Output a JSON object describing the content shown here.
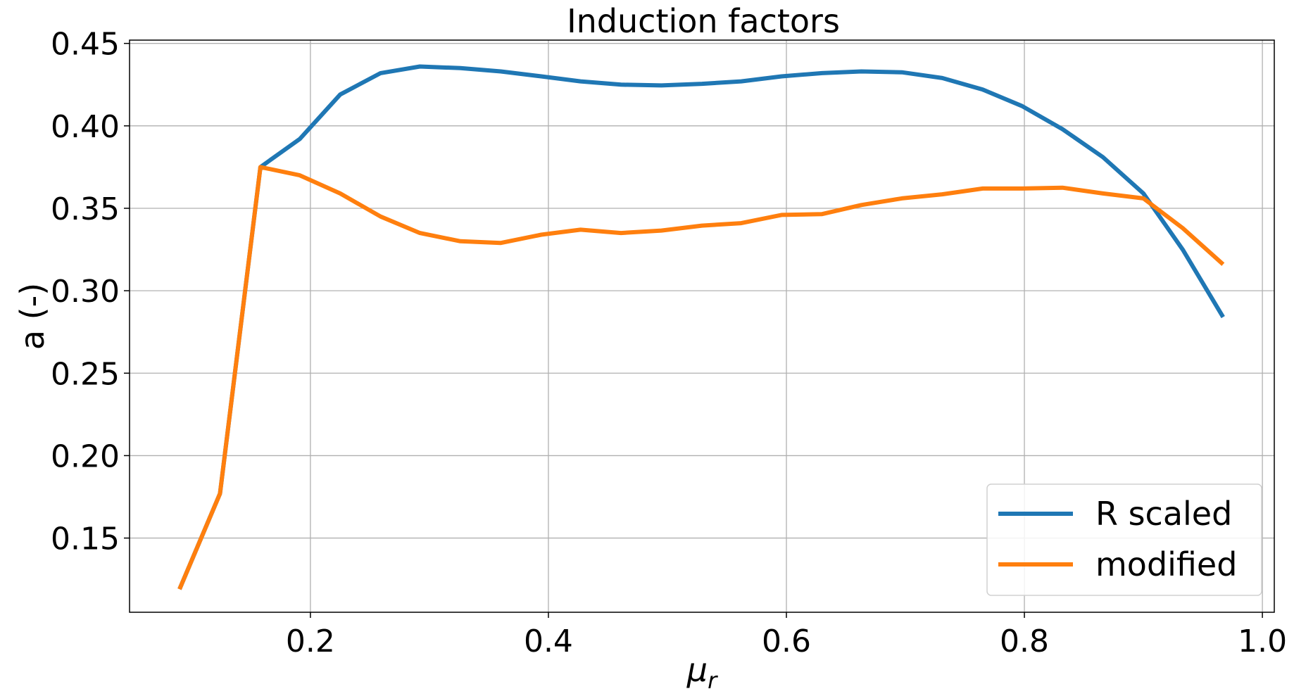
{
  "chart_data": {
    "type": "line",
    "title": "Induction factors",
    "xlabel": "μ_r",
    "ylabel": "a (-)",
    "xlim": [
      0.048,
      1.01
    ],
    "ylim": [
      0.105,
      0.452
    ],
    "xticks": [
      0.2,
      0.4,
      0.6,
      0.8,
      1.0
    ],
    "xtick_labels": [
      "0.2",
      "0.4",
      "0.6",
      "0.8",
      "1.0"
    ],
    "yticks": [
      0.15,
      0.2,
      0.25,
      0.3,
      0.35,
      0.4,
      0.45
    ],
    "ytick_labels": [
      "0.15",
      "0.20",
      "0.25",
      "0.30",
      "0.35",
      "0.40",
      "0.45"
    ],
    "grid": true,
    "legend_position": "lower right",
    "series": [
      {
        "name": "R scaled",
        "color": "#1f77b4",
        "x": [
          0.09,
          0.124,
          0.158,
          0.191,
          0.225,
          0.259,
          0.292,
          0.326,
          0.36,
          0.394,
          0.427,
          0.461,
          0.495,
          0.529,
          0.562,
          0.596,
          0.63,
          0.663,
          0.697,
          0.731,
          0.765,
          0.798,
          0.832,
          0.866,
          0.9,
          0.933,
          0.967
        ],
        "y": [
          0.119,
          0.177,
          0.375,
          0.392,
          0.419,
          0.432,
          0.436,
          0.435,
          0.433,
          0.43,
          0.427,
          0.425,
          0.4245,
          0.4255,
          0.427,
          0.43,
          0.432,
          0.433,
          0.4325,
          0.429,
          0.422,
          0.412,
          0.398,
          0.381,
          0.359,
          0.325,
          0.284
        ]
      },
      {
        "name": "modified",
        "color": "#ff7f0e",
        "x": [
          0.09,
          0.124,
          0.158,
          0.191,
          0.225,
          0.259,
          0.292,
          0.326,
          0.36,
          0.394,
          0.427,
          0.461,
          0.495,
          0.529,
          0.562,
          0.596,
          0.63,
          0.663,
          0.697,
          0.731,
          0.765,
          0.798,
          0.832,
          0.866,
          0.9,
          0.933,
          0.967
        ],
        "y": [
          0.119,
          0.177,
          0.375,
          0.37,
          0.359,
          0.345,
          0.335,
          0.33,
          0.329,
          0.334,
          0.337,
          0.335,
          0.3365,
          0.3395,
          0.341,
          0.346,
          0.3465,
          0.352,
          0.356,
          0.3585,
          0.362,
          0.362,
          0.3625,
          0.359,
          0.356,
          0.338,
          0.316
        ]
      }
    ]
  }
}
